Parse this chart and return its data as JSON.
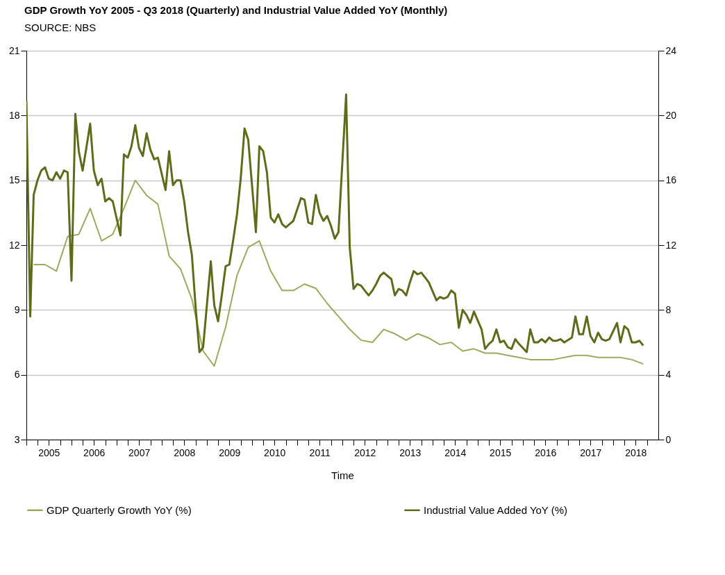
{
  "chart_data": {
    "type": "line",
    "title": "GDP Growth YoY 2005 - Q3 2018 (Quarterly) and Industrial Value Added YoY (Monthly)",
    "subtitle": "SOURCE: NBS",
    "xlabel": "Time",
    "xlim": [
      "2005-01-01",
      "2019-01-01"
    ],
    "xticks": [
      {
        "value": "2005-01-01",
        "label": null
      },
      {
        "value": "2005-04-01",
        "label": null
      },
      {
        "value": "2005-07-01",
        "label": "2005"
      },
      {
        "value": "2005-10-01",
        "label": null
      },
      {
        "value": "2006-01-01",
        "label": null
      },
      {
        "value": "2006-04-01",
        "label": null
      },
      {
        "value": "2006-07-01",
        "label": "2006"
      },
      {
        "value": "2006-10-01",
        "label": null
      },
      {
        "value": "2007-01-01",
        "label": null
      },
      {
        "value": "2007-04-01",
        "label": null
      },
      {
        "value": "2007-07-01",
        "label": "2007"
      },
      {
        "value": "2007-10-01",
        "label": null
      },
      {
        "value": "2008-01-01",
        "label": null
      },
      {
        "value": "2008-04-01",
        "label": null
      },
      {
        "value": "2008-07-01",
        "label": "2008"
      },
      {
        "value": "2008-10-01",
        "label": null
      },
      {
        "value": "2009-01-01",
        "label": null
      },
      {
        "value": "2009-04-01",
        "label": null
      },
      {
        "value": "2009-07-01",
        "label": "2009"
      },
      {
        "value": "2009-10-01",
        "label": null
      },
      {
        "value": "2010-01-01",
        "label": null
      },
      {
        "value": "2010-04-01",
        "label": null
      },
      {
        "value": "2010-07-01",
        "label": "2010"
      },
      {
        "value": "2010-10-01",
        "label": null
      },
      {
        "value": "2011-01-01",
        "label": null
      },
      {
        "value": "2011-04-01",
        "label": null
      },
      {
        "value": "2011-07-01",
        "label": "2011"
      },
      {
        "value": "2011-10-01",
        "label": null
      },
      {
        "value": "2012-01-01",
        "label": null
      },
      {
        "value": "2012-04-01",
        "label": null
      },
      {
        "value": "2012-07-01",
        "label": "2012"
      },
      {
        "value": "2012-10-01",
        "label": null
      },
      {
        "value": "2013-01-01",
        "label": null
      },
      {
        "value": "2013-04-01",
        "label": null
      },
      {
        "value": "2013-07-01",
        "label": "2013"
      },
      {
        "value": "2013-10-01",
        "label": null
      },
      {
        "value": "2014-01-01",
        "label": null
      },
      {
        "value": "2014-04-01",
        "label": null
      },
      {
        "value": "2014-07-01",
        "label": "2014"
      },
      {
        "value": "2014-10-01",
        "label": null
      },
      {
        "value": "2015-01-01",
        "label": null
      },
      {
        "value": "2015-04-01",
        "label": null
      },
      {
        "value": "2015-07-01",
        "label": "2015"
      },
      {
        "value": "2015-10-01",
        "label": null
      },
      {
        "value": "2016-01-01",
        "label": null
      },
      {
        "value": "2016-04-01",
        "label": null
      },
      {
        "value": "2016-07-01",
        "label": "2016"
      },
      {
        "value": "2016-10-01",
        "label": null
      },
      {
        "value": "2017-01-01",
        "label": null
      },
      {
        "value": "2017-04-01",
        "label": null
      },
      {
        "value": "2017-07-01",
        "label": "2017"
      },
      {
        "value": "2017-10-01",
        "label": null
      },
      {
        "value": "2018-01-01",
        "label": null
      },
      {
        "value": "2018-04-01",
        "label": null
      },
      {
        "value": "2018-07-01",
        "label": "2018"
      },
      {
        "value": "2018-10-01",
        "label": null
      }
    ],
    "ylim": [
      3,
      21
    ],
    "yticks": [
      3,
      6,
      9,
      12,
      15,
      18,
      21
    ],
    "y2lim": [
      0,
      24
    ],
    "y2ticks": [
      0,
      4,
      8,
      12,
      16,
      20,
      24
    ],
    "grid": "y",
    "legend": "bottom",
    "marker": "none",
    "line_style": "solid",
    "series": [
      {
        "name": "GDP Quarterly Growth YoY (%)",
        "color": "#9aab5e",
        "axis": "y",
        "x": [
          "2005-03",
          "2005-06",
          "2005-09",
          "2005-12",
          "2006-03",
          "2006-06",
          "2006-09",
          "2006-12",
          "2007-03",
          "2007-06",
          "2007-09",
          "2007-12",
          "2008-03",
          "2008-06",
          "2008-09",
          "2008-12",
          "2009-03",
          "2009-06",
          "2009-09",
          "2009-12",
          "2010-03",
          "2010-06",
          "2010-09",
          "2010-12",
          "2011-03",
          "2011-06",
          "2011-09",
          "2011-12",
          "2012-03",
          "2012-06",
          "2012-09",
          "2012-12",
          "2013-03",
          "2013-06",
          "2013-09",
          "2013-12",
          "2014-03",
          "2014-06",
          "2014-09",
          "2014-12",
          "2015-03",
          "2015-06",
          "2015-09",
          "2015-12",
          "2016-03",
          "2016-06",
          "2016-09",
          "2016-12",
          "2017-03",
          "2017-06",
          "2017-09",
          "2017-12",
          "2018-03",
          "2018-06",
          "2018-09"
        ],
        "values": [
          11.1,
          11.1,
          10.8,
          12.4,
          12.5,
          13.7,
          12.2,
          12.5,
          13.7,
          15.0,
          14.3,
          13.9,
          11.5,
          10.9,
          9.5,
          7.1,
          6.4,
          8.2,
          10.6,
          11.9,
          12.2,
          10.8,
          9.9,
          9.9,
          10.2,
          10.0,
          9.3,
          8.7,
          8.1,
          7.6,
          7.5,
          8.1,
          7.9,
          7.6,
          7.9,
          7.7,
          7.4,
          7.5,
          7.1,
          7.2,
          7.0,
          7.0,
          6.9,
          6.8,
          6.7,
          6.7,
          6.7,
          6.8,
          6.9,
          6.9,
          6.8,
          6.8,
          6.8,
          6.7,
          6.5
        ]
      },
      {
        "name": "Industrial Value Added YoY (%)",
        "color": "#5f6b1a",
        "axis": "y2",
        "x": [
          "2005-01",
          "2005-02",
          "2005-03",
          "2005-04",
          "2005-05",
          "2005-06",
          "2005-07",
          "2005-08",
          "2005-09",
          "2005-10",
          "2005-11",
          "2005-12",
          "2006-01",
          "2006-02",
          "2006-03",
          "2006-04",
          "2006-05",
          "2006-06",
          "2006-07",
          "2006-08",
          "2006-09",
          "2006-10",
          "2006-11",
          "2006-12",
          "2007-02",
          "2007-03",
          "2007-04",
          "2007-05",
          "2007-06",
          "2007-07",
          "2007-08",
          "2007-09",
          "2007-10",
          "2007-11",
          "2007-12",
          "2008-02",
          "2008-03",
          "2008-04",
          "2008-05",
          "2008-06",
          "2008-07",
          "2008-08",
          "2008-09",
          "2008-10",
          "2008-11",
          "2008-12",
          "2009-02",
          "2009-03",
          "2009-04",
          "2009-05",
          "2009-06",
          "2009-07",
          "2009-08",
          "2009-09",
          "2009-10",
          "2009-11",
          "2009-12",
          "2010-02",
          "2010-03",
          "2010-04",
          "2010-05",
          "2010-06",
          "2010-07",
          "2010-08",
          "2010-09",
          "2010-10",
          "2010-11",
          "2010-12",
          "2011-02",
          "2011-03",
          "2011-04",
          "2011-05",
          "2011-06",
          "2011-07",
          "2011-08",
          "2011-09",
          "2011-10",
          "2011-11",
          "2011-12",
          "2012-02",
          "2012-03",
          "2012-04",
          "2012-05",
          "2012-06",
          "2012-07",
          "2012-08",
          "2012-09",
          "2012-10",
          "2012-11",
          "2012-12",
          "2013-02",
          "2013-03",
          "2013-04",
          "2013-05",
          "2013-06",
          "2013-07",
          "2013-08",
          "2013-09",
          "2013-10",
          "2013-11",
          "2013-12",
          "2014-02",
          "2014-03",
          "2014-04",
          "2014-05",
          "2014-06",
          "2014-07",
          "2014-08",
          "2014-09",
          "2014-10",
          "2014-11",
          "2014-12",
          "2015-02",
          "2015-03",
          "2015-04",
          "2015-05",
          "2015-06",
          "2015-07",
          "2015-08",
          "2015-09",
          "2015-10",
          "2015-11",
          "2015-12",
          "2016-02",
          "2016-03",
          "2016-04",
          "2016-05",
          "2016-06",
          "2016-07",
          "2016-08",
          "2016-09",
          "2016-10",
          "2016-11",
          "2016-12",
          "2017-02",
          "2017-03",
          "2017-04",
          "2017-05",
          "2017-06",
          "2017-07",
          "2017-08",
          "2017-09",
          "2017-10",
          "2017-11",
          "2017-12",
          "2018-02",
          "2018-03",
          "2018-04",
          "2018-05",
          "2018-06",
          "2018-07",
          "2018-08",
          "2018-09"
        ],
        "values": [
          20.9,
          7.6,
          15.1,
          16.0,
          16.6,
          16.8,
          16.1,
          16.0,
          16.5,
          16.1,
          16.6,
          16.5,
          9.8,
          20.1,
          17.8,
          16.6,
          18.0,
          19.5,
          16.6,
          15.7,
          16.1,
          14.7,
          14.9,
          14.7,
          12.6,
          17.6,
          17.4,
          18.1,
          19.4,
          18.0,
          17.5,
          18.9,
          17.9,
          17.3,
          17.4,
          15.4,
          17.8,
          15.7,
          16.0,
          16.0,
          14.7,
          12.8,
          11.4,
          8.2,
          5.4,
          5.7,
          11.0,
          8.3,
          7.3,
          8.9,
          10.7,
          10.8,
          12.3,
          13.9,
          16.1,
          19.2,
          18.5,
          12.8,
          18.1,
          17.8,
          16.5,
          13.7,
          13.4,
          13.9,
          13.3,
          13.1,
          13.3,
          13.5,
          14.9,
          14.8,
          13.4,
          13.3,
          15.1,
          14.0,
          13.5,
          13.8,
          13.2,
          12.4,
          12.8,
          21.3,
          11.9,
          9.3,
          9.6,
          9.5,
          9.2,
          8.9,
          9.2,
          9.6,
          10.1,
          10.3,
          9.9,
          8.9,
          9.3,
          9.2,
          8.9,
          9.7,
          10.4,
          10.2,
          10.3,
          10.0,
          9.7,
          8.6,
          8.8,
          8.7,
          8.8,
          9.2,
          9.0,
          6.9,
          8.0,
          7.7,
          7.2,
          7.9,
          6.8,
          5.6,
          5.9,
          6.1,
          6.8,
          6.0,
          6.1,
          5.7,
          5.6,
          6.2,
          5.9,
          5.4,
          6.8,
          6.0,
          6.0,
          6.2,
          6.0,
          6.3,
          6.1,
          6.1,
          6.2,
          6.0,
          6.3,
          7.6,
          6.5,
          6.5,
          7.6,
          6.4,
          6.0,
          6.6,
          6.2,
          6.1,
          6.2,
          7.2,
          6.0,
          7.0,
          6.8,
          6.0,
          6.0,
          6.1,
          5.8
        ]
      }
    ]
  }
}
